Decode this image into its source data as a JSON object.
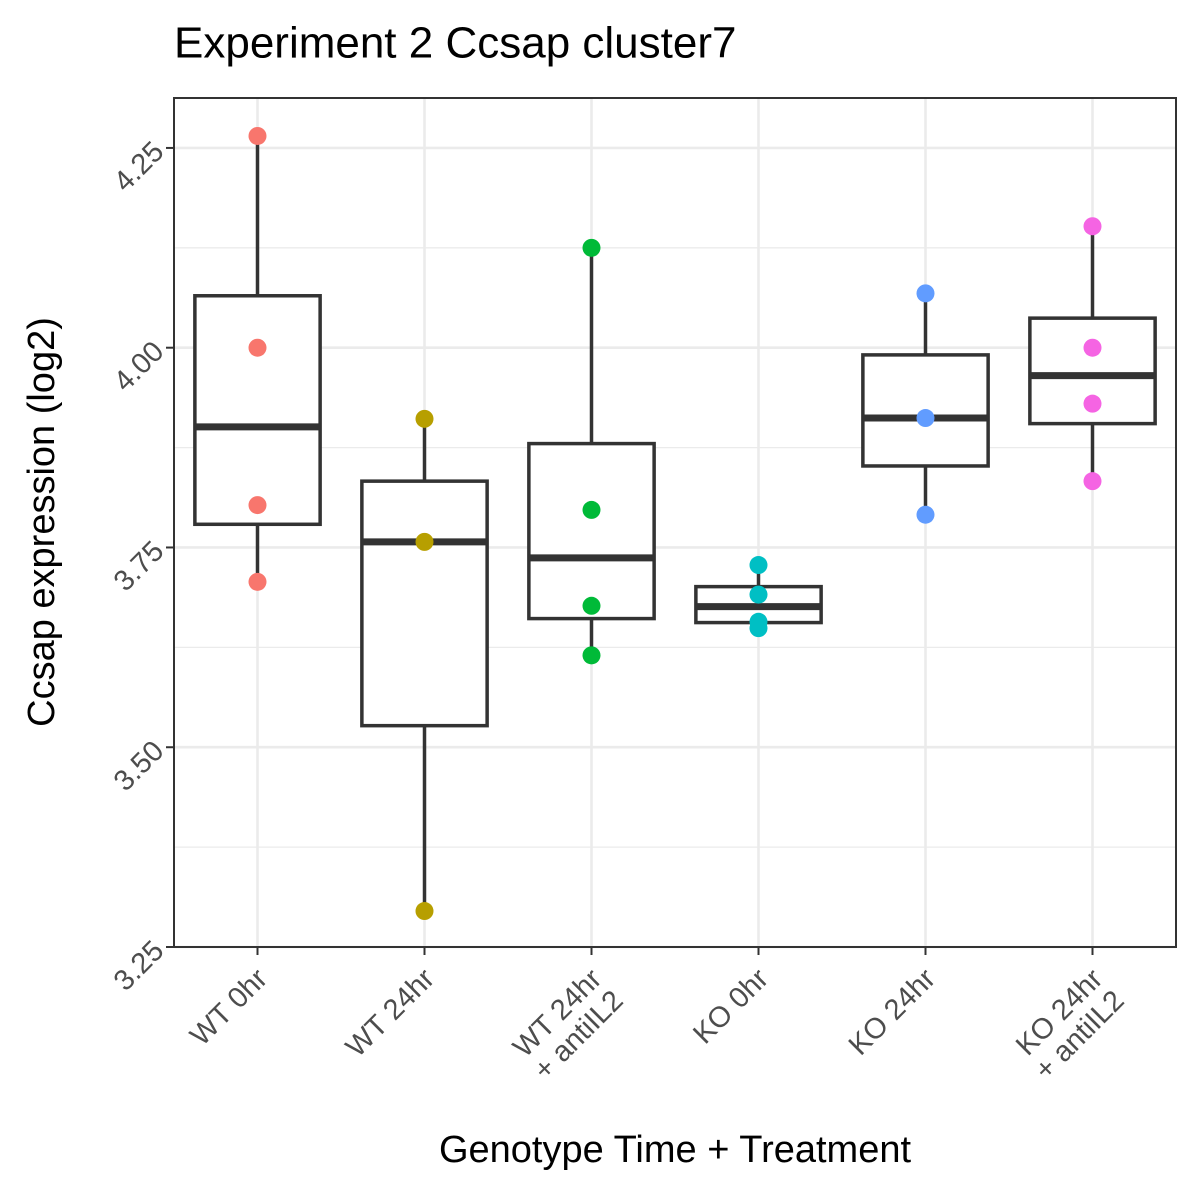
{
  "chart_data": {
    "type": "box",
    "title": "Experiment 2 Ccsap cluster7",
    "x_label": "Genotype Time + Treatment",
    "y_label": "Ccsap expression (log2)",
    "categories": [
      "WT 0hr",
      "WT 24hr",
      "WT 24hr\n+ antiIL2",
      "KO 0hr",
      "KO 24hr",
      "KO 24hr\n+ antiIL2"
    ],
    "boxes": [
      {
        "color": "#F8766D",
        "min": 3.707,
        "q1": 3.779,
        "median": 3.901,
        "q3": 4.065,
        "max": 4.265,
        "points": [
          4.265,
          4.0,
          3.803,
          3.707
        ]
      },
      {
        "color": "#B79F00",
        "min": 3.295,
        "q1": 3.527,
        "median": 3.757,
        "q3": 3.833,
        "max": 3.911,
        "points": [
          3.911,
          3.757,
          3.295
        ]
      },
      {
        "color": "#00BA38",
        "min": 3.615,
        "q1": 3.661,
        "median": 3.737,
        "q3": 3.88,
        "max": 4.125,
        "points": [
          4.125,
          3.797,
          3.677,
          3.615
        ]
      },
      {
        "color": "#00BFC4",
        "min": 3.649,
        "q1": 3.656,
        "median": 3.676,
        "q3": 3.701,
        "max": 3.728,
        "points": [
          3.728,
          3.691,
          3.657,
          3.649
        ]
      },
      {
        "color": "#619CFF",
        "min": 3.791,
        "q1": 3.852,
        "median": 3.912,
        "q3": 3.991,
        "max": 4.068,
        "points": [
          4.068,
          3.912,
          3.791
        ]
      },
      {
        "color": "#F564E3",
        "min": 3.833,
        "q1": 3.905,
        "median": 3.965,
        "q3": 4.037,
        "max": 4.152,
        "points": [
          4.152,
          4.0,
          3.93,
          3.833
        ]
      }
    ],
    "ylim": [
      3.25,
      4.3125
    ],
    "yticks": [
      3.25,
      {
        "value": 3.5,
        "label": "3.50"
      },
      3.75,
      {
        "value": 4.0,
        "label": "4.00"
      },
      4.25
    ],
    "y_minor_ticks": [
      3.375,
      3.625,
      3.875,
      4.125
    ],
    "grid": true
  }
}
